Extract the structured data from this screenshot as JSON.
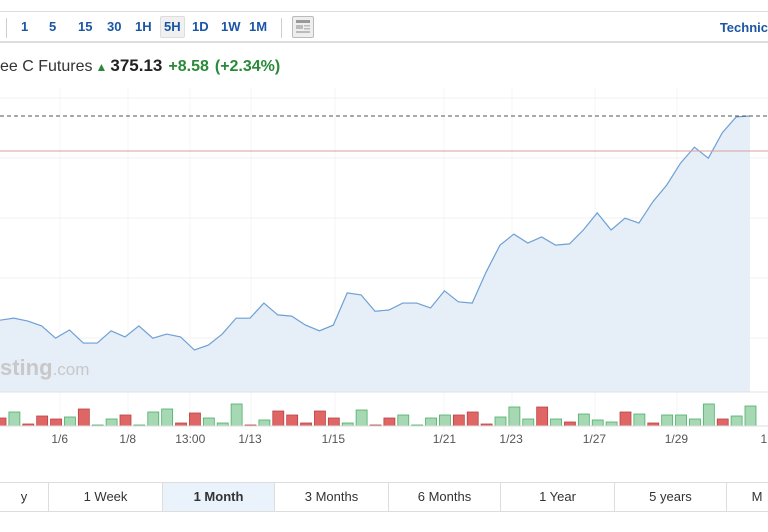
{
  "toolbar": {
    "timeframes": [
      "1",
      "5",
      "15",
      "30",
      "1H",
      "5H",
      "1D",
      "1W",
      "1M"
    ],
    "active": "5H",
    "technical_label": "Technic"
  },
  "quote": {
    "name": "ee C Futures",
    "price": "375.13",
    "change": "+8.58",
    "change_pct": "(+2.34%)",
    "direction": "up"
  },
  "watermark": {
    "text": "sting",
    ".com": ".com"
  },
  "colors": {
    "line": "#6ea0d4",
    "area": "#e6eef8",
    "up": "#a6d8b4",
    "down": "#e06666",
    "prev_close": "#d9a0a0"
  },
  "chart_data": {
    "type": "area",
    "prices": [
      325.1,
      325.6,
      324.9,
      323.7,
      320.7,
      322.7,
      319.5,
      319.5,
      322.5,
      321.0,
      323.7,
      320.7,
      321.7,
      321.0,
      317.8,
      319.0,
      321.7,
      325.6,
      325.6,
      329.3,
      326.4,
      326.1,
      323.9,
      322.5,
      323.9,
      331.8,
      331.3,
      327.3,
      327.6,
      329.3,
      329.3,
      328.1,
      332.3,
      329.6,
      329.3,
      336.9,
      343.5,
      346.2,
      344.0,
      345.5,
      343.5,
      343.8,
      347.2,
      351.4,
      347.2,
      350.1,
      348.9,
      354.1,
      358.2,
      363.6,
      367.5,
      364.8,
      371.0,
      374.9,
      375.13
    ],
    "last_price": 375.13,
    "previous_close": 366.55,
    "volume": [
      {
        "up": false,
        "v": 8
      },
      {
        "up": true,
        "v": 14
      },
      {
        "up": false,
        "v": 2
      },
      {
        "up": false,
        "v": 10
      },
      {
        "up": false,
        "v": 7
      },
      {
        "up": true,
        "v": 9
      },
      {
        "up": false,
        "v": 17
      },
      {
        "up": true,
        "v": 1
      },
      {
        "up": true,
        "v": 7
      },
      {
        "up": false,
        "v": 11
      },
      {
        "up": true,
        "v": 1
      },
      {
        "up": true,
        "v": 14
      },
      {
        "up": true,
        "v": 17
      },
      {
        "up": false,
        "v": 3
      },
      {
        "up": false,
        "v": 13
      },
      {
        "up": true,
        "v": 8
      },
      {
        "up": true,
        "v": 3
      },
      {
        "up": true,
        "v": 22
      },
      {
        "up": false,
        "v": 1
      },
      {
        "up": true,
        "v": 6
      },
      {
        "up": false,
        "v": 15
      },
      {
        "up": false,
        "v": 11
      },
      {
        "up": false,
        "v": 3
      },
      {
        "up": false,
        "v": 15
      },
      {
        "up": false,
        "v": 8
      },
      {
        "up": true,
        "v": 3
      },
      {
        "up": true,
        "v": 16
      },
      {
        "up": false,
        "v": 1
      },
      {
        "up": false,
        "v": 8
      },
      {
        "up": true,
        "v": 11
      },
      {
        "up": true,
        "v": 1
      },
      {
        "up": true,
        "v": 8
      },
      {
        "up": true,
        "v": 11
      },
      {
        "up": false,
        "v": 11
      },
      {
        "up": false,
        "v": 14
      },
      {
        "up": false,
        "v": 2
      },
      {
        "up": true,
        "v": 9
      },
      {
        "up": true,
        "v": 19
      },
      {
        "up": true,
        "v": 7
      },
      {
        "up": false,
        "v": 19
      },
      {
        "up": true,
        "v": 7
      },
      {
        "up": false,
        "v": 4
      },
      {
        "up": true,
        "v": 12
      },
      {
        "up": true,
        "v": 6
      },
      {
        "up": true,
        "v": 4
      },
      {
        "up": false,
        "v": 14
      },
      {
        "up": true,
        "v": 12
      },
      {
        "up": false,
        "v": 3
      },
      {
        "up": true,
        "v": 11
      },
      {
        "up": true,
        "v": 11
      },
      {
        "up": true,
        "v": 7
      },
      {
        "up": true,
        "v": 22
      },
      {
        "up": false,
        "v": 7
      },
      {
        "up": true,
        "v": 10
      },
      {
        "up": true,
        "v": 20
      }
    ],
    "x_ticks": [
      {
        "label": "1/6",
        "i": 4.3
      },
      {
        "label": "1/8",
        "i": 9.2
      },
      {
        "label": "13:00",
        "i": 13.7
      },
      {
        "label": "1/13",
        "i": 18
      },
      {
        "label": "1/15",
        "i": 24
      },
      {
        "label": "1/21",
        "i": 32
      },
      {
        "label": "1/23",
        "i": 36.8
      },
      {
        "label": "1/27",
        "i": 42.8
      },
      {
        "label": "1/29",
        "i": 48.7
      },
      {
        "label": "1",
        "i": 55
      }
    ]
  },
  "ranges": {
    "items": [
      "y",
      "1 Week",
      "1 Month",
      "3 Months",
      "6 Months",
      "1 Year",
      "5 years",
      "M"
    ],
    "active": "1 Month"
  }
}
